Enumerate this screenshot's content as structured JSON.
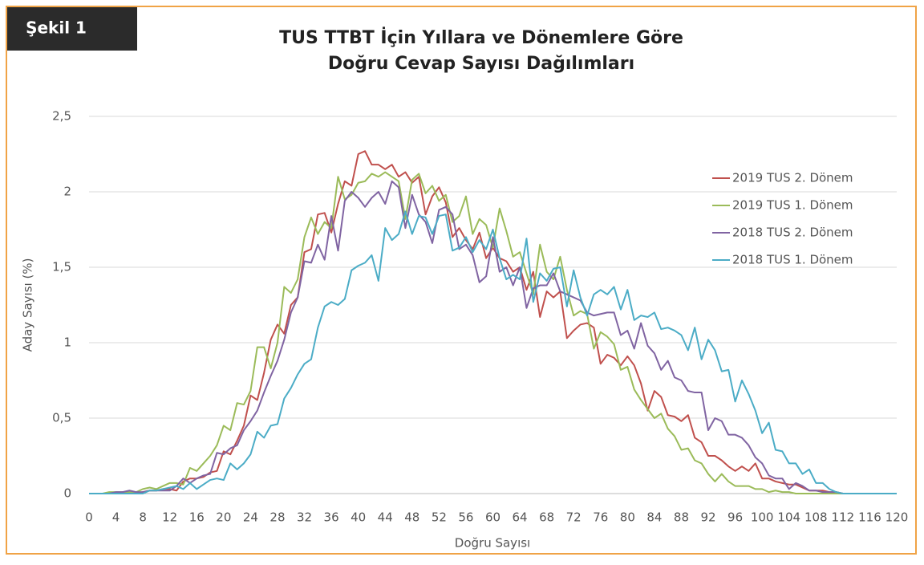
{
  "figure_label": "Şekil 1",
  "chart_data": {
    "type": "line",
    "title": [
      "TUS TTBT İçin Yıllara ve Dönemlere Göre",
      "Doğru Cevap Sayısı Dağılımları"
    ],
    "x_label": "Doğru Sayısı",
    "y_label": "Aday Sayısı (%)",
    "xlim": [
      0,
      120
    ],
    "ylim": [
      0,
      2.5
    ],
    "xticks": [
      0,
      4,
      8,
      12,
      16,
      20,
      24,
      28,
      32,
      36,
      40,
      44,
      48,
      52,
      56,
      60,
      64,
      68,
      72,
      76,
      80,
      84,
      88,
      92,
      96,
      100,
      104,
      108,
      112,
      116,
      120
    ],
    "yticks": [
      0,
      {
        "value": 0.5,
        "label": "0,5"
      },
      1,
      {
        "value": 1.5,
        "label": "1,5"
      },
      2,
      {
        "value": 2.5,
        "label": "2,5"
      }
    ],
    "grid": true,
    "legend": "right",
    "x": [
      0,
      1,
      2,
      3,
      4,
      5,
      6,
      7,
      8,
      9,
      10,
      11,
      12,
      13,
      14,
      15,
      16,
      17,
      18,
      19,
      20,
      21,
      22,
      23,
      24,
      25,
      26,
      27,
      28,
      29,
      30,
      31,
      32,
      33,
      34,
      35,
      36,
      37,
      38,
      39,
      40,
      41,
      42,
      43,
      44,
      45,
      46,
      47,
      48,
      49,
      50,
      51,
      52,
      53,
      54,
      55,
      56,
      57,
      58,
      59,
      60,
      61,
      62,
      63,
      64,
      65,
      66,
      67,
      68,
      69,
      70,
      71,
      72,
      73,
      74,
      75,
      76,
      77,
      78,
      79,
      80,
      81,
      82,
      83,
      84,
      85,
      86,
      87,
      88,
      89,
      90,
      91,
      92,
      93,
      94,
      95,
      96,
      97,
      98,
      99,
      100,
      101,
      102,
      103,
      104,
      105,
      106,
      107,
      108,
      109,
      110,
      111,
      112,
      113,
      114,
      115,
      116,
      117,
      118,
      119,
      120
    ],
    "series": [
      {
        "name": "2019 TUS 2. Dönem",
        "color": "#c0504d",
        "values": [
          0,
          0,
          0,
          0,
          0,
          0.01,
          0.01,
          0,
          0.01,
          0.02,
          0.02,
          0.03,
          0.03,
          0.02,
          0.08,
          0.1,
          0.1,
          0.11,
          0.14,
          0.15,
          0.28,
          0.26,
          0.35,
          0.45,
          0.65,
          0.62,
          0.8,
          1.02,
          1.12,
          1.06,
          1.25,
          1.3,
          1.6,
          1.62,
          1.85,
          1.86,
          1.73,
          1.92,
          2.07,
          2.04,
          2.25,
          2.27,
          2.18,
          2.18,
          2.15,
          2.18,
          2.1,
          2.13,
          2.06,
          2.1,
          1.85,
          1.97,
          2.03,
          1.93,
          1.7,
          1.76,
          1.68,
          1.62,
          1.73,
          1.56,
          1.63,
          1.56,
          1.54,
          1.47,
          1.5,
          1.35,
          1.47,
          1.17,
          1.34,
          1.3,
          1.34,
          1.03,
          1.08,
          1.12,
          1.13,
          1.1,
          0.86,
          0.92,
          0.9,
          0.85,
          0.91,
          0.85,
          0.73,
          0.55,
          0.68,
          0.64,
          0.52,
          0.51,
          0.48,
          0.52,
          0.37,
          0.34,
          0.25,
          0.25,
          0.22,
          0.18,
          0.15,
          0.18,
          0.15,
          0.2,
          0.1,
          0.1,
          0.08,
          0.07,
          0.06,
          0.06,
          0.04,
          0.02,
          0.02,
          0.02,
          0.01,
          0.01,
          0,
          0,
          0,
          0,
          0,
          0,
          0,
          0,
          0
        ]
      },
      {
        "name": "2019 TUS 1. Dönem",
        "color": "#9bbb59",
        "values": [
          0,
          0,
          0,
          0.01,
          0.01,
          0.01,
          0.01,
          0.01,
          0.03,
          0.04,
          0.03,
          0.05,
          0.07,
          0.07,
          0.06,
          0.17,
          0.15,
          0.2,
          0.25,
          0.32,
          0.45,
          0.42,
          0.6,
          0.59,
          0.68,
          0.97,
          0.97,
          0.83,
          1.0,
          1.37,
          1.33,
          1.42,
          1.7,
          1.83,
          1.72,
          1.8,
          1.76,
          2.1,
          1.95,
          1.98,
          2.06,
          2.07,
          2.12,
          2.1,
          2.13,
          2.1,
          2.07,
          1.82,
          2.08,
          2.12,
          1.99,
          2.04,
          1.94,
          1.98,
          1.8,
          1.84,
          1.97,
          1.72,
          1.82,
          1.78,
          1.63,
          1.89,
          1.74,
          1.57,
          1.6,
          1.46,
          1.32,
          1.65,
          1.47,
          1.42,
          1.57,
          1.35,
          1.18,
          1.21,
          1.19,
          0.96,
          1.07,
          1.04,
          0.99,
          0.82,
          0.84,
          0.69,
          0.62,
          0.56,
          0.5,
          0.53,
          0.43,
          0.38,
          0.29,
          0.3,
          0.22,
          0.2,
          0.13,
          0.08,
          0.13,
          0.08,
          0.05,
          0.05,
          0.05,
          0.03,
          0.03,
          0.01,
          0.02,
          0.01,
          0.01,
          0,
          0,
          0,
          0,
          0,
          0,
          0,
          0,
          0,
          0,
          0,
          0,
          0,
          0,
          0,
          0
        ]
      },
      {
        "name": "2018 TUS 2. Dönem",
        "color": "#8064a2",
        "values": [
          0,
          0,
          0,
          0,
          0.01,
          0.01,
          0.02,
          0.01,
          0.01,
          0.02,
          0.02,
          0.02,
          0.02,
          0.05,
          0.1,
          0.07,
          0.1,
          0.12,
          0.13,
          0.27,
          0.26,
          0.3,
          0.32,
          0.42,
          0.48,
          0.55,
          0.67,
          0.78,
          0.88,
          1.02,
          1.2,
          1.3,
          1.54,
          1.53,
          1.65,
          1.55,
          1.84,
          1.61,
          1.94,
          2.0,
          1.96,
          1.9,
          1.96,
          2.0,
          1.92,
          2.07,
          2.03,
          1.76,
          1.98,
          1.85,
          1.8,
          1.66,
          1.88,
          1.9,
          1.85,
          1.62,
          1.65,
          1.58,
          1.4,
          1.44,
          1.7,
          1.47,
          1.5,
          1.38,
          1.5,
          1.23,
          1.36,
          1.38,
          1.38,
          1.46,
          1.34,
          1.32,
          1.3,
          1.28,
          1.2,
          1.18,
          1.19,
          1.2,
          1.2,
          1.05,
          1.08,
          0.96,
          1.13,
          0.98,
          0.93,
          0.82,
          0.88,
          0.77,
          0.75,
          0.68,
          0.67,
          0.67,
          0.42,
          0.5,
          0.48,
          0.39,
          0.39,
          0.37,
          0.32,
          0.24,
          0.2,
          0.12,
          0.1,
          0.1,
          0.03,
          0.07,
          0.05,
          0.02,
          0.02,
          0.01,
          0.01,
          0.01,
          0,
          0,
          0,
          0,
          0,
          0,
          0,
          0,
          0
        ]
      },
      {
        "name": "2018 TUS 1. Dönem",
        "color": "#4bacc6",
        "values": [
          0,
          0,
          0,
          0,
          0,
          0,
          0,
          0,
          0,
          0.02,
          0.02,
          0.03,
          0.04,
          0.05,
          0.03,
          0.07,
          0.03,
          0.06,
          0.09,
          0.1,
          0.09,
          0.2,
          0.16,
          0.2,
          0.26,
          0.41,
          0.37,
          0.45,
          0.46,
          0.63,
          0.7,
          0.79,
          0.86,
          0.89,
          1.1,
          1.24,
          1.27,
          1.25,
          1.29,
          1.48,
          1.51,
          1.53,
          1.58,
          1.41,
          1.76,
          1.68,
          1.72,
          1.87,
          1.72,
          1.84,
          1.83,
          1.72,
          1.84,
          1.85,
          1.61,
          1.63,
          1.7,
          1.6,
          1.68,
          1.62,
          1.75,
          1.56,
          1.42,
          1.45,
          1.42,
          1.69,
          1.27,
          1.46,
          1.41,
          1.49,
          1.5,
          1.24,
          1.48,
          1.3,
          1.18,
          1.32,
          1.35,
          1.32,
          1.37,
          1.22,
          1.35,
          1.15,
          1.18,
          1.17,
          1.2,
          1.09,
          1.1,
          1.08,
          1.05,
          0.95,
          1.1,
          0.89,
          1.02,
          0.95,
          0.81,
          0.82,
          0.61,
          0.75,
          0.66,
          0.55,
          0.4,
          0.47,
          0.29,
          0.28,
          0.2,
          0.2,
          0.13,
          0.16,
          0.07,
          0.07,
          0.03,
          0.01,
          0,
          0,
          0,
          0,
          0,
          0,
          0,
          0,
          0
        ]
      }
    ]
  }
}
